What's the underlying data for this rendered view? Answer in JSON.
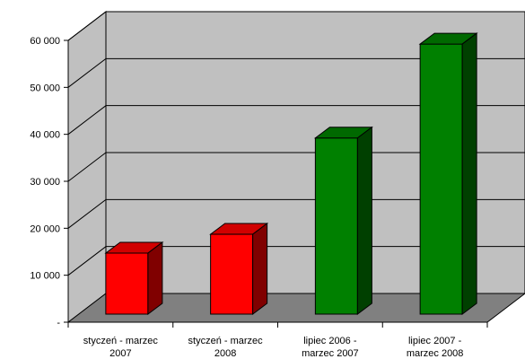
{
  "chart_data": {
    "type": "bar",
    "style": "3d",
    "categories": [
      [
        "styczeń - marzec",
        "2007"
      ],
      [
        "styczeń - marzec",
        "2008"
      ],
      [
        "lipiec 2006 -",
        "marzec 2007"
      ],
      [
        "lipiec 2007 -",
        "marzec 2008"
      ]
    ],
    "values": [
      13000,
      17000,
      37500,
      57500
    ],
    "bar_colors": [
      "#ff0000",
      "#ff0000",
      "#008000",
      "#008000"
    ],
    "ylim": [
      0,
      60000
    ],
    "yticks": [
      {
        "value": 0,
        "label": "-"
      },
      {
        "value": 10000,
        "label": "10 000"
      },
      {
        "value": 20000,
        "label": "20 000"
      },
      {
        "value": 30000,
        "label": "30 000"
      },
      {
        "value": 40000,
        "label": "40 000"
      },
      {
        "value": 50000,
        "label": "50 000"
      },
      {
        "value": 60000,
        "label": "60 000"
      }
    ],
    "grid": true,
    "wall_color": "#c0c0c0",
    "floor_color": "#808080",
    "title": "",
    "xlabel": "",
    "ylabel": ""
  }
}
